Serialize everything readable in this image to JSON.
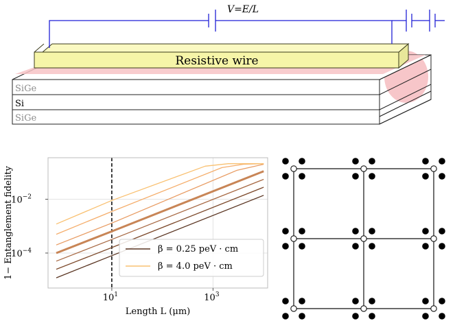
{
  "top_diagram": {
    "voltage_label": "V=E/L",
    "wire_label": "Resistive wire",
    "layers": [
      {
        "name": "SiGe",
        "color": "#8c8c8c"
      },
      {
        "name": "Si",
        "color": "#000000"
      },
      {
        "name": "SiGe",
        "color": "#8c8c8c"
      }
    ],
    "colors": {
      "circuit": "#1f1fd6",
      "wire_fill": "#f6f5a8",
      "wire_stroke": "#3a3a1a",
      "pink": "#f7c3c6"
    }
  },
  "chart_data": {
    "type": "line",
    "xlabel": "Length L (μm)",
    "ylabel": "1− Entanglement fidelity",
    "xscale": "log",
    "yscale": "log",
    "xlim": [
      0.55,
      12000
    ],
    "ylim": [
      5e-06,
      0.35
    ],
    "x_ticks": [
      {
        "value": 10,
        "label": "10",
        "exp": "1"
      },
      {
        "value": 1000,
        "label": "10",
        "exp": "3"
      }
    ],
    "y_ticks": [
      {
        "value": 0.0001,
        "label": "10",
        "exp": "−4"
      },
      {
        "value": 0.01,
        "label": "10",
        "exp": "−2"
      }
    ],
    "grid": true,
    "vline_x": 10,
    "legend": {
      "placement": "bottom-right",
      "entries": [
        {
          "label": "β = 0.25 peV · cm",
          "color": "#5a3522"
        },
        {
          "label": "β = 4.0 peV · cm",
          "color": "#f9c070"
        }
      ]
    },
    "series": [
      {
        "color": "#5a3522",
        "width": 1.3,
        "points": [
          [
            0.8,
            1.2e-05
          ],
          [
            10,
            8e-05
          ],
          [
            10000,
            0.014
          ]
        ]
      },
      {
        "color": "#7d4a2c",
        "width": 1.3,
        "points": [
          [
            0.8,
            2.5e-05
          ],
          [
            10,
            0.00016
          ],
          [
            10000,
            0.028
          ]
        ]
      },
      {
        "color": "#a86a45",
        "width": 1.3,
        "points": [
          [
            0.8,
            5e-05
          ],
          [
            10,
            0.00032
          ],
          [
            10000,
            0.055
          ]
        ]
      },
      {
        "color": "#c88556",
        "width": 3.0,
        "points": [
          [
            0.8,
            0.0001
          ],
          [
            10,
            0.00064
          ],
          [
            10000,
            0.11
          ]
        ]
      },
      {
        "color": "#e89b62",
        "width": 1.3,
        "points": [
          [
            0.8,
            0.0002
          ],
          [
            10,
            0.0013
          ],
          [
            3000,
            0.12
          ],
          [
            10000,
            0.2
          ]
        ]
      },
      {
        "color": "#f5ae6c",
        "width": 1.3,
        "points": [
          [
            0.8,
            0.0005
          ],
          [
            10,
            0.0035
          ],
          [
            1500,
            0.15
          ],
          [
            4000,
            0.2
          ],
          [
            10000,
            0.21
          ]
        ]
      },
      {
        "color": "#f9c070",
        "width": 1.3,
        "points": [
          [
            0.8,
            0.0012
          ],
          [
            10,
            0.009
          ],
          [
            700,
            0.17
          ],
          [
            2000,
            0.21
          ],
          [
            10000,
            0.21
          ]
        ]
      }
    ]
  },
  "lattice": {
    "rows": 3,
    "cols": 3
  }
}
